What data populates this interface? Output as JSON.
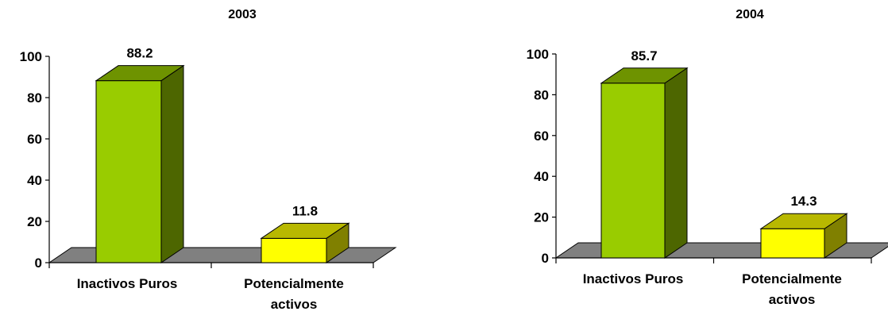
{
  "chart_data": [
    {
      "type": "bar",
      "title": "2003",
      "categories": [
        "Inactivos Puros",
        "Potencialmente activos"
      ],
      "category_lines": [
        [
          "Inactivos Puros"
        ],
        [
          "Potencialmente",
          "activos"
        ]
      ],
      "values": [
        88.2,
        11.8
      ],
      "value_labels": [
        "88.2",
        "11.8"
      ],
      "ylim": [
        0,
        100
      ],
      "yticks": [
        0,
        20,
        40,
        60,
        80,
        100
      ],
      "ytick_labels": [
        "0",
        "20",
        "40",
        "60",
        "80",
        "100"
      ],
      "bar_colors": [
        "#99cc00",
        "#ffff00"
      ],
      "grid": false,
      "style": "3d"
    },
    {
      "type": "bar",
      "title": "2004",
      "categories": [
        "Inactivos Puros",
        "Potencialmente activos"
      ],
      "category_lines": [
        [
          "Inactivos Puros"
        ],
        [
          "Potencialmente",
          "activos"
        ]
      ],
      "values": [
        85.7,
        14.3
      ],
      "value_labels": [
        "85.7",
        "14.3"
      ],
      "ylim": [
        0,
        100
      ],
      "yticks": [
        0,
        20,
        40,
        60,
        80,
        100
      ],
      "ytick_labels": [
        "0",
        "20",
        "40",
        "60",
        "80",
        "100"
      ],
      "bar_colors": [
        "#99cc00",
        "#ffff00"
      ],
      "grid": false,
      "style": "3d"
    }
  ]
}
